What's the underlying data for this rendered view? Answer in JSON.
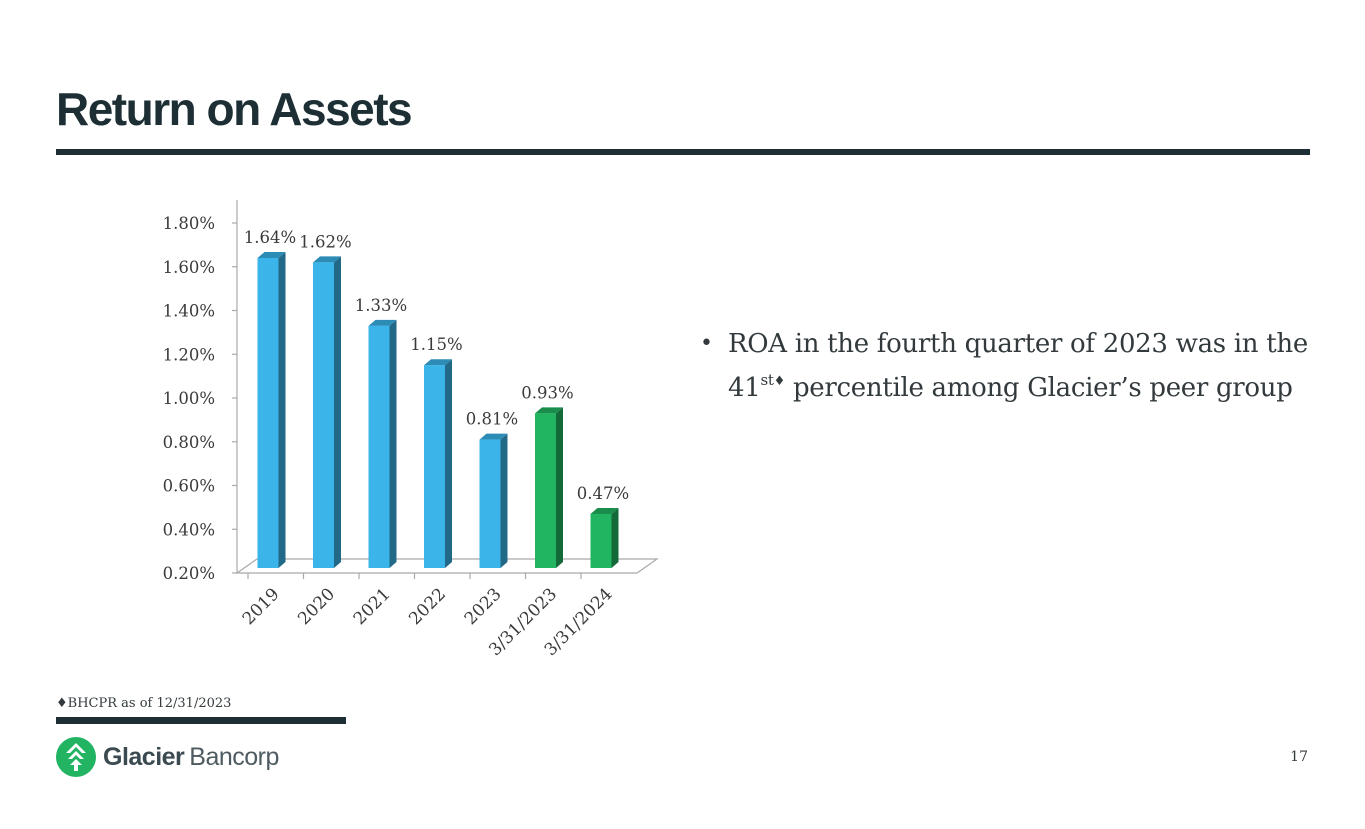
{
  "page": {
    "title": "Return on Assets",
    "page_number": "17"
  },
  "bullet": {
    "line1": "ROA in the fourth quarter of 2023 was in the",
    "line2_prefix": "41",
    "line2_sup": "st",
    "line2_marker": "♦",
    "line2_rest": " percentile among Glacier’s peer group"
  },
  "footnote": {
    "text": "♦BHCPR as of 12/31/2023"
  },
  "logo": {
    "word1": "Glacier",
    "word2": "Bancorp"
  },
  "colors": {
    "blue_bar": "#3ab4e9",
    "green_bar": "#21b561",
    "title_dark": "#1d2f35",
    "logo_green": "#22b462"
  },
  "chart_data": {
    "type": "bar",
    "title": "",
    "xlabel": "",
    "ylabel": "",
    "categories": [
      "2019",
      "2020",
      "2021",
      "2022",
      "2023",
      "3/31/2023",
      "3/31/2024"
    ],
    "values": [
      1.64,
      1.62,
      1.33,
      1.15,
      0.81,
      0.93,
      0.47
    ],
    "data_labels": [
      "1.64%",
      "1.62%",
      "1.33%",
      "1.15%",
      "0.81%",
      "0.93%",
      "0.47%"
    ],
    "bar_colors": [
      "#3ab4e9",
      "#3ab4e9",
      "#3ab4e9",
      "#3ab4e9",
      "#3ab4e9",
      "#21b561",
      "#21b561"
    ],
    "ylim": [
      0.2,
      1.8
    ],
    "ytick_labels": [
      "0.20%",
      "0.40%",
      "0.60%",
      "0.80%",
      "1.00%",
      "1.20%",
      "1.40%",
      "1.60%",
      "1.80%"
    ],
    "style": "3d-column",
    "grid": false,
    "legend": "none"
  }
}
